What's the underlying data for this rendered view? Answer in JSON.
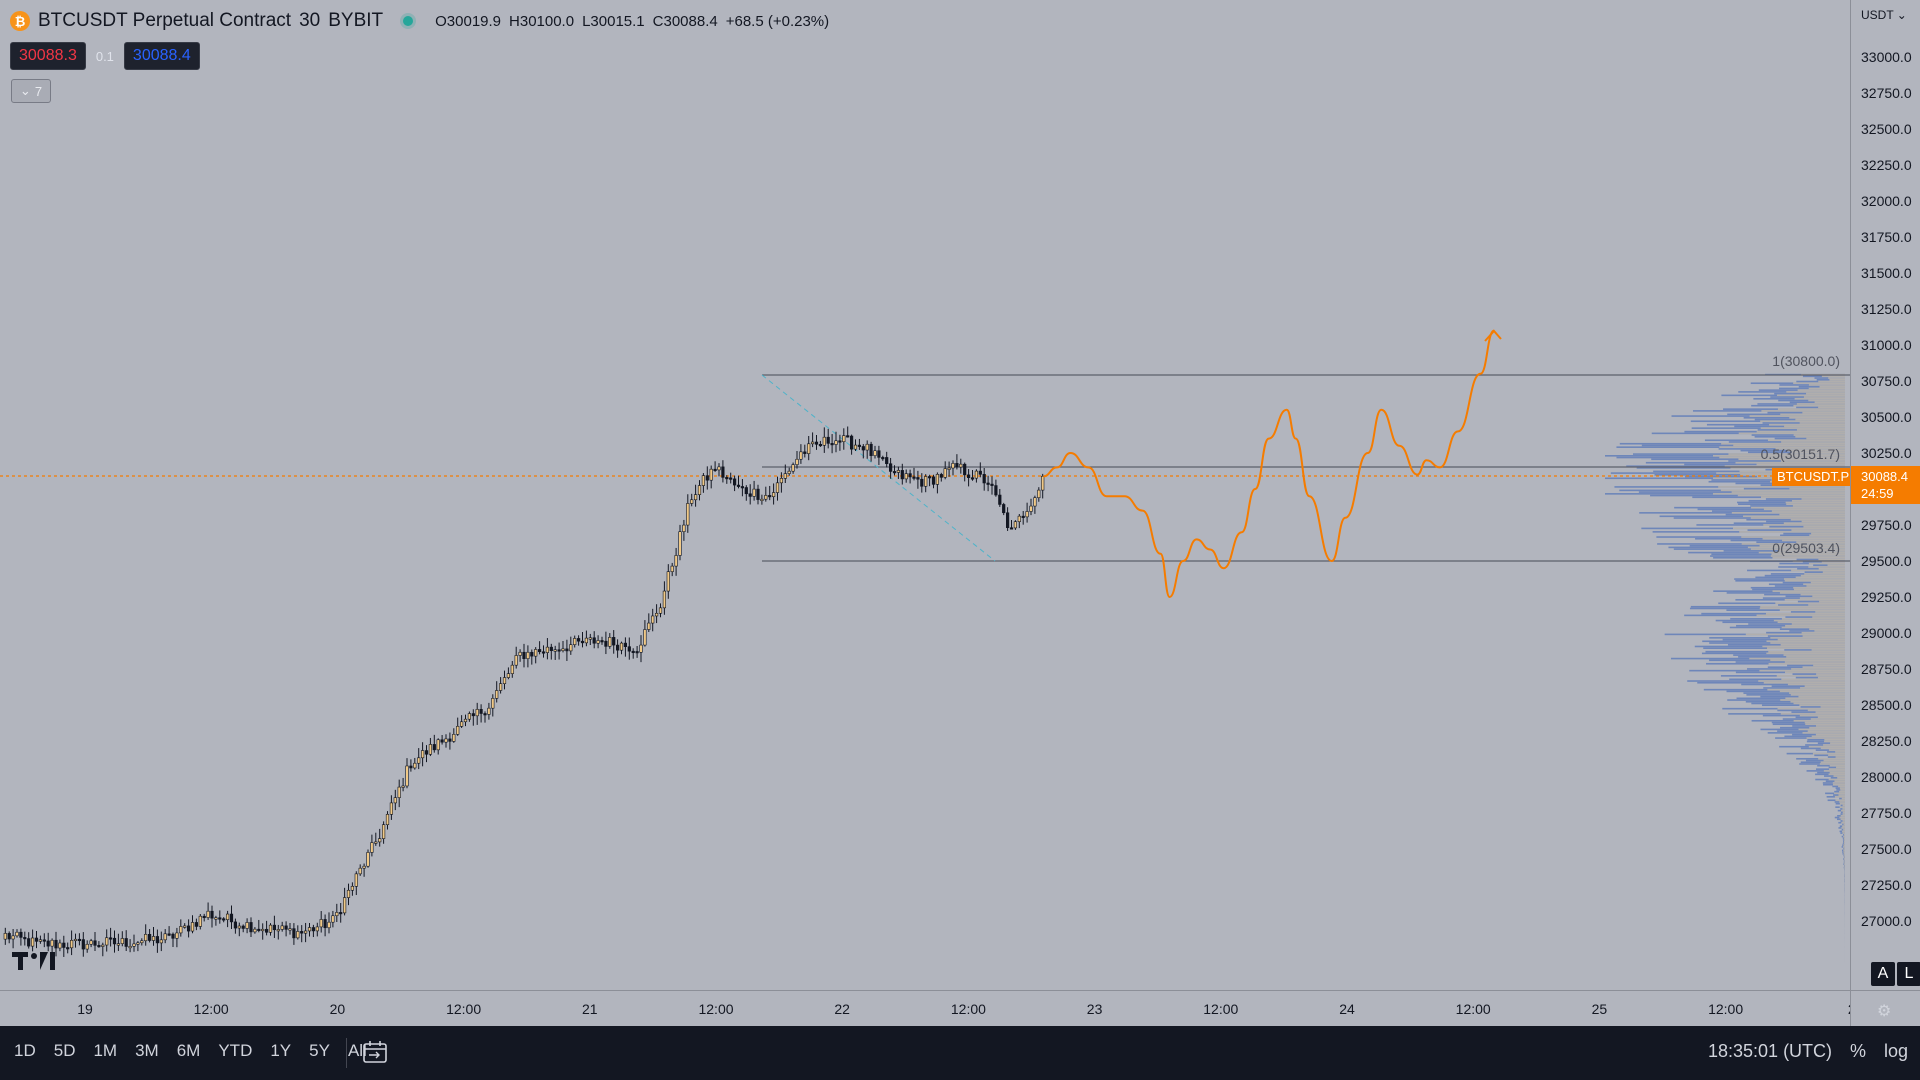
{
  "legend": {
    "symbol": "BTCUSDT Perpetual Contract",
    "interval": "30",
    "exchange": "BYBIT",
    "open": "O30019.9",
    "high": "H30100.0",
    "low": "L30015.1",
    "close": "C30088.4",
    "change": "+68.5 (+0.23%)",
    "sell_price": "30088.3",
    "spread": "0.1",
    "buy_price": "30088.4",
    "indicator_count": "7",
    "logo_glyph": "₿"
  },
  "price_scale": {
    "currency": "USDT",
    "ticks": [
      "33000.0",
      "32750.0",
      "32500.0",
      "32250.0",
      "32000.0",
      "31750.0",
      "31500.0",
      "31250.0",
      "31000.0",
      "30750.0",
      "30500.0",
      "30250.0",
      "29750.0",
      "29500.0",
      "29250.0",
      "29000.0",
      "28750.0",
      "28500.0",
      "28250.0",
      "28000.0",
      "27750.0",
      "27500.0",
      "27250.0",
      "27000.0"
    ],
    "last_price": "30088.4",
    "countdown": "24:59",
    "symbol_tag": "BTCUSDT.P",
    "auto_label": "A",
    "log_label": "L"
  },
  "fib": {
    "level_1": "1(30800.0)",
    "level_05": "0.5(30151.7)",
    "level_0": "0(29503.4)"
  },
  "time_axis": {
    "labels": [
      "19",
      "12:00",
      "20",
      "12:00",
      "21",
      "12:00",
      "22",
      "12:00",
      "23",
      "12:00",
      "24",
      "12:00",
      "25",
      "12:00",
      "2"
    ]
  },
  "bottom_bar": {
    "ranges": [
      "1D",
      "5D",
      "1M",
      "3M",
      "6M",
      "YTD",
      "1Y",
      "5Y",
      "All"
    ],
    "clock": "18:35:01 (UTC)",
    "percent": "%",
    "log": "log"
  },
  "colors": {
    "background": "#b2b5be",
    "candle_up": "#f0c987",
    "candle_down": "#131722",
    "projection": "#f57c00",
    "volume_profile": "#5d7bb8",
    "accent": "#f57c00"
  },
  "chart_data": {
    "type": "candlestick",
    "symbol": "BTCUSDT.P",
    "interval": "30",
    "y_range": [
      26700,
      33100
    ],
    "last_close": 30088.4,
    "fib_levels": [
      30800.0,
      30151.7,
      29503.4
    ],
    "path": [
      [
        0,
        26900
      ],
      [
        8,
        26840
      ],
      [
        20,
        26840
      ],
      [
        30,
        26850
      ],
      [
        42,
        26880
      ],
      [
        52,
        27050
      ],
      [
        58,
        27000
      ],
      [
        66,
        26950
      ],
      [
        76,
        26920
      ],
      [
        84,
        27000
      ],
      [
        96,
        27600
      ],
      [
        104,
        28100
      ],
      [
        112,
        28250
      ],
      [
        124,
        28500
      ],
      [
        132,
        28850
      ],
      [
        142,
        28900
      ],
      [
        152,
        28950
      ],
      [
        162,
        28900
      ],
      [
        168,
        29200
      ],
      [
        176,
        29950
      ],
      [
        182,
        30150
      ],
      [
        188,
        30000
      ],
      [
        196,
        29950
      ],
      [
        204,
        30250
      ],
      [
        212,
        30350
      ],
      [
        220,
        30300
      ],
      [
        228,
        30100
      ],
      [
        236,
        30050
      ],
      [
        244,
        30150
      ],
      [
        252,
        30050
      ],
      [
        258,
        29700
      ],
      [
        266,
        30050
      ]
    ],
    "projection": [
      [
        0,
        30088
      ],
      [
        3,
        30150
      ],
      [
        6,
        30250
      ],
      [
        10,
        30150
      ],
      [
        14,
        29950
      ],
      [
        18,
        29950
      ],
      [
        22,
        29850
      ],
      [
        26,
        29550
      ],
      [
        28,
        29250
      ],
      [
        31,
        29500
      ],
      [
        34,
        29650
      ],
      [
        37,
        29580
      ],
      [
        40,
        29450
      ],
      [
        44,
        29700
      ],
      [
        47,
        30000
      ],
      [
        50,
        30350
      ],
      [
        54,
        30550
      ],
      [
        56,
        30350
      ],
      [
        59,
        29950
      ],
      [
        64,
        29500
      ],
      [
        67,
        29800
      ],
      [
        72,
        30250
      ],
      [
        75,
        30550
      ],
      [
        79,
        30300
      ],
      [
        83,
        30100
      ],
      [
        85,
        30200
      ],
      [
        88,
        30150
      ],
      [
        92,
        30400
      ],
      [
        97,
        30800
      ],
      [
        100,
        31100
      ]
    ],
    "volume_profile_top": [
      30800,
      29500
    ],
    "volume_profile_bottom": [
      29500,
      26800
    ]
  }
}
